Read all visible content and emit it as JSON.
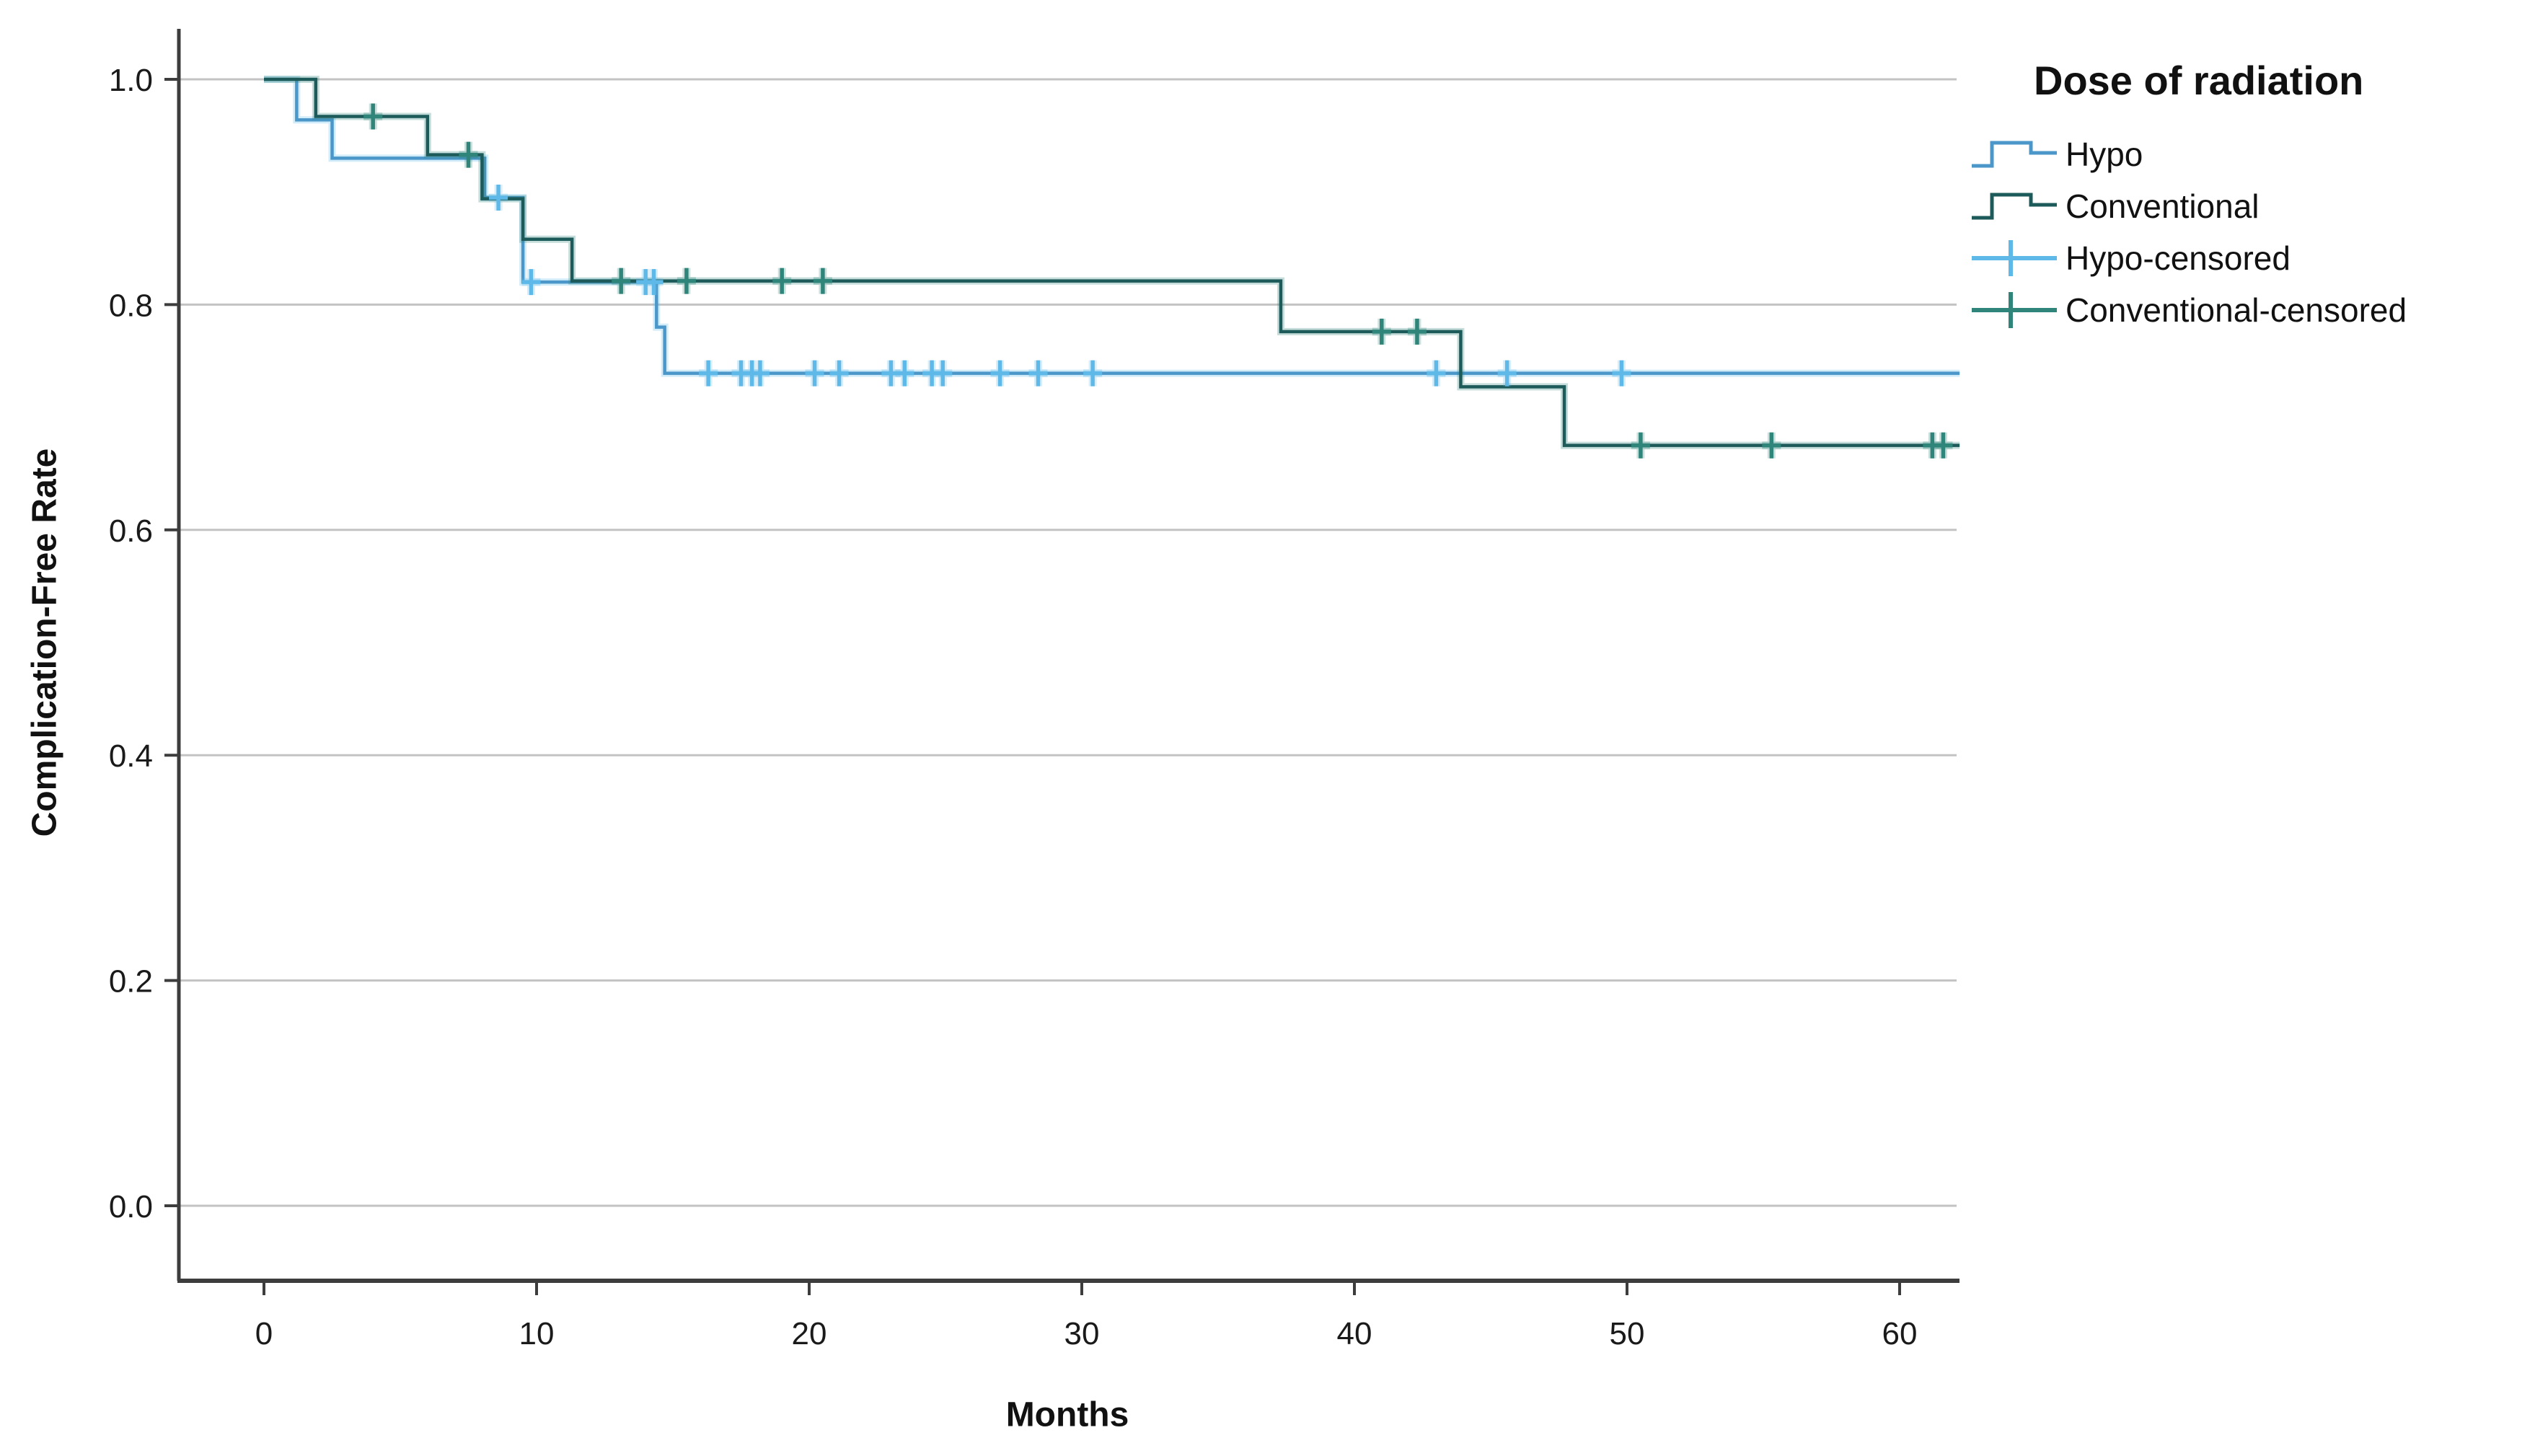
{
  "axes": {
    "x_label": "Months",
    "y_label": "Complication-Free Rate",
    "x_tick_labels": [
      "0",
      "10",
      "20",
      "30",
      "40",
      "50",
      "60"
    ],
    "y_tick_labels": [
      "0.0",
      "0.2",
      "0.4",
      "0.6",
      "0.8",
      "1.0"
    ]
  },
  "legend": {
    "title": "Dose of radiation",
    "items": [
      {
        "label": "Hypo",
        "symbol": "step",
        "color": "#4b97c9"
      },
      {
        "label": "Conventional",
        "symbol": "step",
        "color": "#1d5a5a"
      },
      {
        "label": "Hypo-censored",
        "symbol": "plus",
        "color": "#5fb9e8"
      },
      {
        "label": "Conventional-censored",
        "symbol": "plus",
        "color": "#2f8579"
      }
    ]
  },
  "chart_data": {
    "type": "line",
    "subtype": "kaplan-meier-step",
    "title": "",
    "xlabel": "Months",
    "ylabel": "Complication-Free Rate",
    "xlim": [
      -3.1,
      62.3
    ],
    "ylim": [
      -0.065,
      1.07
    ],
    "x_ticks": [
      0,
      10,
      20,
      30,
      40,
      50,
      60
    ],
    "y_ticks": [
      0.0,
      0.2,
      0.4,
      0.6,
      0.8,
      1.0
    ],
    "grid": "horizontal",
    "legend_position": "top-right",
    "curve_end_month": 62.2,
    "series": [
      {
        "name": "Hypo",
        "color": "#4b97c9",
        "censor_color": "#5fb9e8",
        "steps": [
          [
            0,
            1.0
          ],
          [
            1.2,
            0.964
          ],
          [
            2.5,
            0.93
          ],
          [
            8.1,
            0.895
          ],
          [
            9.5,
            0.82
          ],
          [
            14.4,
            0.78
          ],
          [
            14.7,
            0.739
          ]
        ],
        "censored": [
          [
            8.6,
            0.895
          ],
          [
            9.8,
            0.82
          ],
          [
            14.0,
            0.82
          ],
          [
            14.3,
            0.82
          ],
          [
            16.3,
            0.739
          ],
          [
            17.5,
            0.739
          ],
          [
            17.9,
            0.739
          ],
          [
            18.2,
            0.739
          ],
          [
            20.2,
            0.739
          ],
          [
            21.1,
            0.739
          ],
          [
            23.0,
            0.739
          ],
          [
            23.5,
            0.739
          ],
          [
            24.5,
            0.739
          ],
          [
            24.9,
            0.739
          ],
          [
            27.0,
            0.739
          ],
          [
            28.4,
            0.739
          ],
          [
            30.4,
            0.739
          ],
          [
            43.0,
            0.739
          ],
          [
            45.6,
            0.739
          ],
          [
            49.8,
            0.739
          ]
        ]
      },
      {
        "name": "Conventional",
        "color": "#1d5a5a",
        "censor_color": "#2f8579",
        "steps": [
          [
            0,
            1.0
          ],
          [
            1.9,
            0.967
          ],
          [
            6.0,
            0.933
          ],
          [
            8.0,
            0.894
          ],
          [
            9.5,
            0.858
          ],
          [
            11.3,
            0.821
          ],
          [
            37.3,
            0.776
          ],
          [
            43.9,
            0.727
          ],
          [
            47.7,
            0.675
          ]
        ],
        "censored": [
          [
            4.0,
            0.967
          ],
          [
            7.5,
            0.933
          ],
          [
            13.1,
            0.821
          ],
          [
            15.5,
            0.821
          ],
          [
            19.0,
            0.821
          ],
          [
            20.5,
            0.821
          ],
          [
            41.0,
            0.776
          ],
          [
            42.3,
            0.776
          ],
          [
            50.5,
            0.675
          ],
          [
            55.3,
            0.675
          ],
          [
            61.2,
            0.675
          ],
          [
            61.6,
            0.675
          ]
        ]
      }
    ]
  }
}
